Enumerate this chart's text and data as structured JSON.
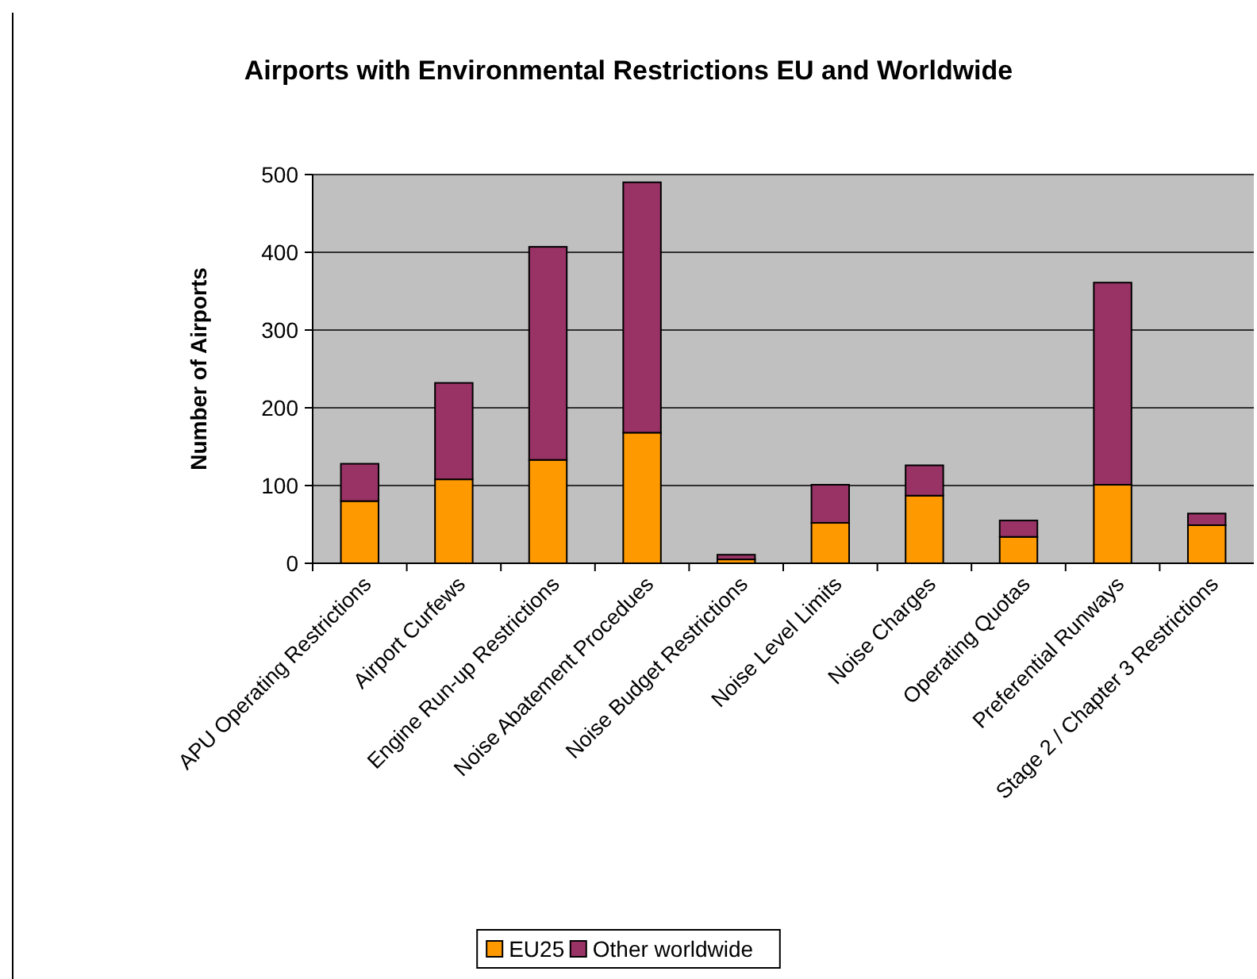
{
  "chart_data": {
    "type": "bar",
    "stacked": true,
    "title": "Airports with Environmental Restrictions EU and Worldwide",
    "ylabel": "Number of Airports",
    "categories": [
      "APU Operating Restrictions",
      "Airport Curfews",
      "Engine Run-up Restrictions",
      "Noise Abatement Procedues",
      "Noise Budget Restrictions",
      "Noise Level Limits",
      "Noise Charges",
      "Operating Quotas",
      "Preferential Runways",
      "Stage 2 / Chapter 3 Restrictions"
    ],
    "series": [
      {
        "name": "EU25",
        "color": "#ff9900",
        "values": [
          80,
          108,
          133,
          168,
          5,
          52,
          87,
          34,
          101,
          49
        ]
      },
      {
        "name": "Other worldwide",
        "color": "#993366",
        "values": [
          48,
          124,
          274,
          322,
          6,
          49,
          39,
          21,
          260,
          15
        ]
      }
    ],
    "ylim": [
      0,
      500
    ],
    "yticks": [
      0,
      100,
      200,
      300,
      400,
      500
    ],
    "grid": "y",
    "legend": "bottom"
  }
}
